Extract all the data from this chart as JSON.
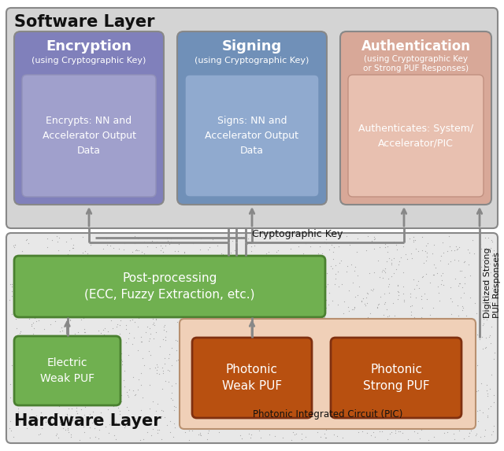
{
  "software_layer_label": "Software Layer",
  "hardware_layer_label": "Hardware Layer",
  "software_bg": "#d4d4d4",
  "hardware_bg": "#e8e8e8",
  "encryption_box": {
    "title": "Encryption",
    "subtitle": "(using Cryptographic Key)",
    "inner_text": "Encrypts: NN and\nAccelerator Output\nData",
    "bg": "#8080bb",
    "inner_bg": "#a0a0cc",
    "border": "#888888"
  },
  "signing_box": {
    "title": "Signing",
    "subtitle": "(using Cryptographic Key)",
    "inner_text": "Signs: NN and\nAccelerator Output\nData",
    "bg": "#7090b8",
    "inner_bg": "#90aacf",
    "border": "#888888"
  },
  "authentication_box": {
    "title": "Authentication",
    "subtitle": "(using Cryptographic Key\nor Strong PUF Responses)",
    "inner_text": "Authenticates: System/\nAccelerator/PIC",
    "bg": "#d8a898",
    "inner_bg": "#e8c0b0",
    "border": "#888888"
  },
  "postprocessing_box": {
    "title": "Post-processing\n(ECC, Fuzzy Extraction, etc.)",
    "bg": "#70b050",
    "border": "#4a8030"
  },
  "electric_puf_box": {
    "title": "Electric\nWeak PUF",
    "bg": "#70b050",
    "border": "#4a8030"
  },
  "pic_box": {
    "title": "Photonic Integrated Circuit (PIC)",
    "bg": "#f0d0b8",
    "border": "#b89070"
  },
  "photonic_weak_box": {
    "title": "Photonic\nWeak PUF",
    "bg": "#b85010",
    "border": "#803010"
  },
  "photonic_strong_box": {
    "title": "Photonic\nStrong PUF",
    "bg": "#b85010",
    "border": "#803010"
  },
  "crypto_key_label": "Cryptographic Key",
  "digitized_label": "Digitized Strong\nPUF Responses",
  "text_white": "#ffffff",
  "text_dark": "#111111",
  "arrow_color": "#888888",
  "line_color": "#888888"
}
